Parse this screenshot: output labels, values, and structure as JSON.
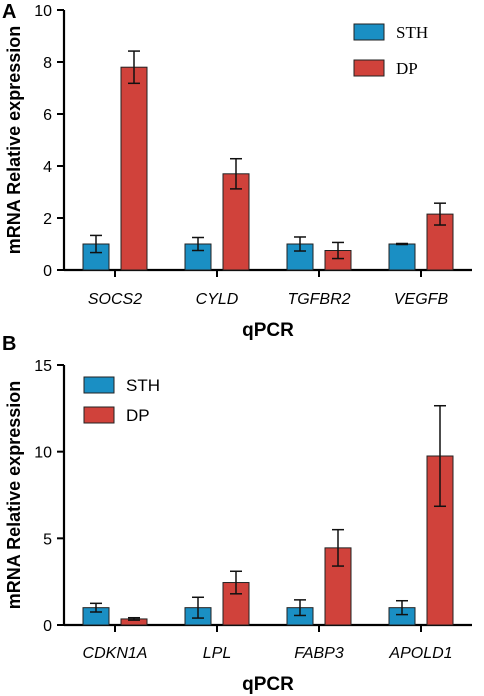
{
  "colors": {
    "sth": "#1a8fc4",
    "dp": "#d0423b",
    "axis": "#000000"
  },
  "chart_data": [
    {
      "panel": "A",
      "type": "bar",
      "xlabel": "qPCR",
      "ylabel": "mRNA Relative expression",
      "ylim": [
        0,
        10
      ],
      "yticks": [
        "0",
        "2",
        "4",
        "6",
        "8",
        "10"
      ],
      "ytick_values": [
        0,
        2,
        4,
        6,
        8,
        10
      ],
      "categories": [
        "SOCS2",
        "CYLD",
        "TGFBR2",
        "VEGFB"
      ],
      "legend_position": "top-right",
      "legend_font": "serif",
      "series": [
        {
          "name": "STH",
          "values": [
            1.0,
            1.0,
            1.0,
            1.0
          ],
          "errors": [
            0.33,
            0.25,
            0.27,
            0.02
          ]
        },
        {
          "name": "DP",
          "values": [
            7.8,
            3.7,
            0.75,
            2.15
          ],
          "errors": [
            0.62,
            0.58,
            0.31,
            0.42
          ]
        }
      ]
    },
    {
      "panel": "B",
      "type": "bar",
      "xlabel": "qPCR",
      "ylabel": "mRNA Relative expression",
      "ylim": [
        0,
        15
      ],
      "yticks": [
        "0",
        "5",
        "10",
        "15"
      ],
      "ytick_values": [
        0,
        5,
        10,
        15
      ],
      "categories": [
        "CDKN1A",
        "LPL",
        "FABP3",
        "APOLD1"
      ],
      "legend_position": "top-left",
      "legend_font": "sans",
      "series": [
        {
          "name": "STH",
          "values": [
            1.0,
            1.0,
            1.0,
            1.0
          ],
          "errors": [
            0.25,
            0.6,
            0.45,
            0.4
          ]
        },
        {
          "name": "DP",
          "values": [
            0.35,
            2.45,
            4.45,
            9.75
          ],
          "errors": [
            0.07,
            0.65,
            1.05,
            2.9
          ]
        }
      ]
    }
  ]
}
